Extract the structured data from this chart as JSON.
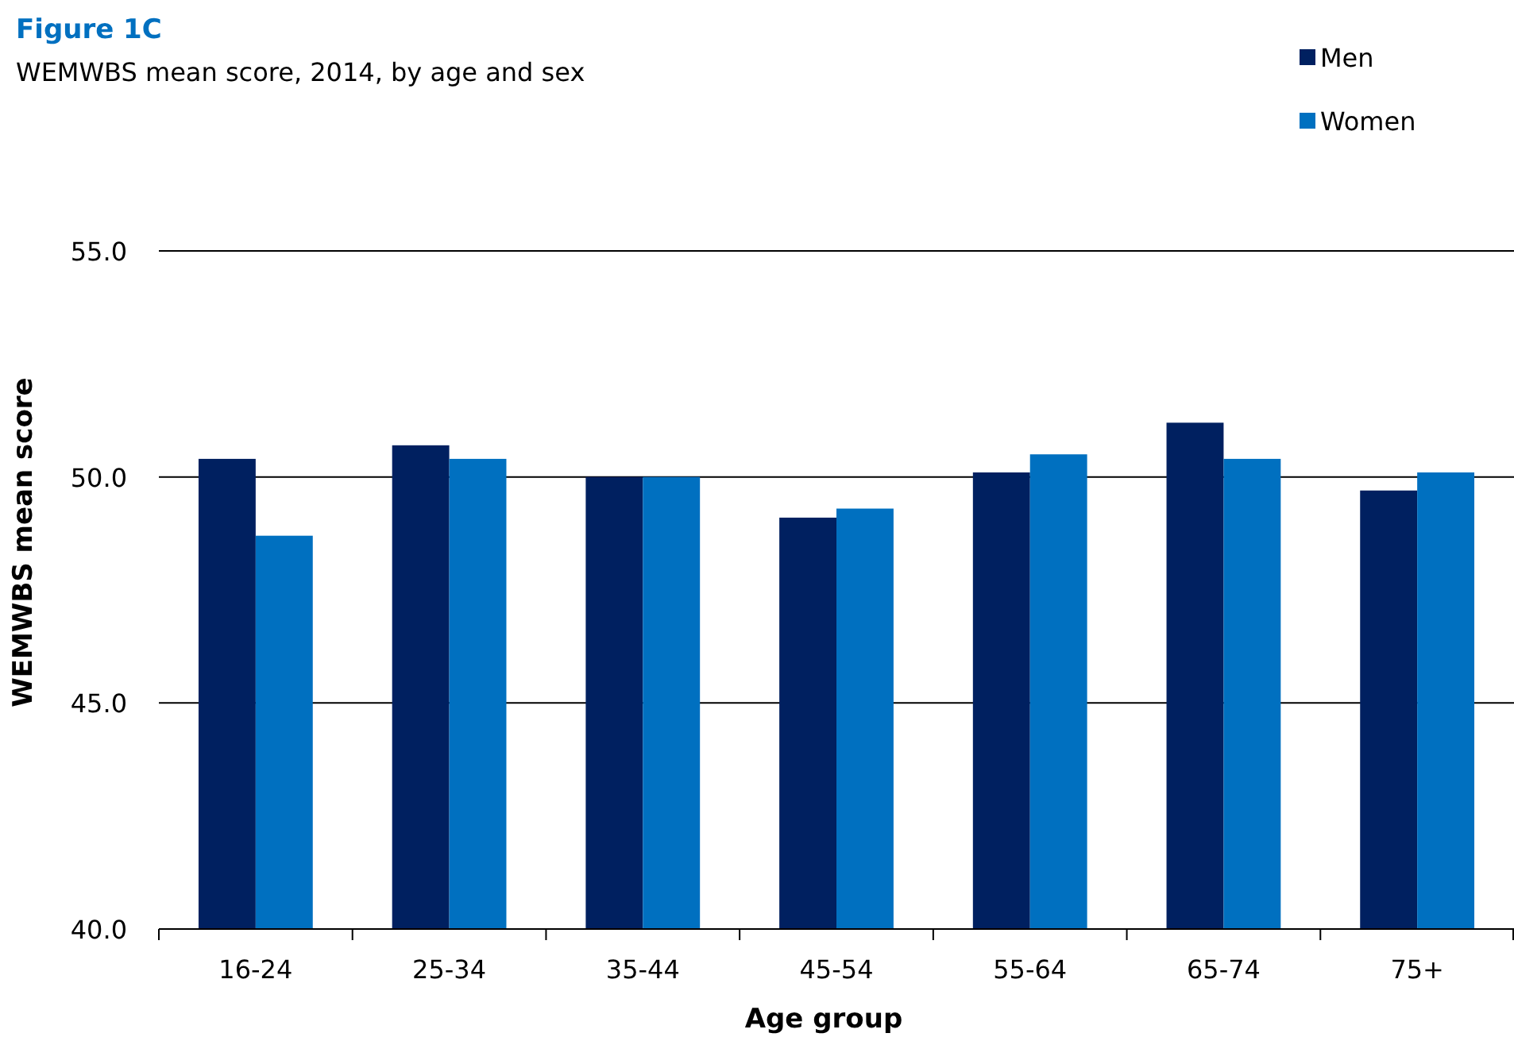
{
  "chart_data": {
    "type": "bar",
    "title": "Figure 1C",
    "subtitle": "WEMWBS mean score, 2014, by age and sex",
    "xlabel": "Age group",
    "ylabel": "WEMWBS mean score",
    "categories": [
      "16-24",
      "25-34",
      "35-44",
      "45-54",
      "55-64",
      "65-74",
      "75+"
    ],
    "series": [
      {
        "name": "Men",
        "color": "#002060",
        "values": [
          50.4,
          50.7,
          50.0,
          49.1,
          50.1,
          51.2,
          49.7
        ]
      },
      {
        "name": "Women",
        "color": "#0070c0",
        "values": [
          48.7,
          50.4,
          50.0,
          49.3,
          50.5,
          50.4,
          50.1
        ]
      }
    ],
    "ylim": [
      40,
      55
    ],
    "yticks": [
      {
        "value": 40,
        "label": "40.0"
      },
      {
        "value": 45,
        "label": "45.0"
      },
      {
        "value": 50,
        "label": "50.0"
      },
      {
        "value": 55,
        "label": "55.0"
      }
    ],
    "grid": "y",
    "legend": "top right"
  }
}
